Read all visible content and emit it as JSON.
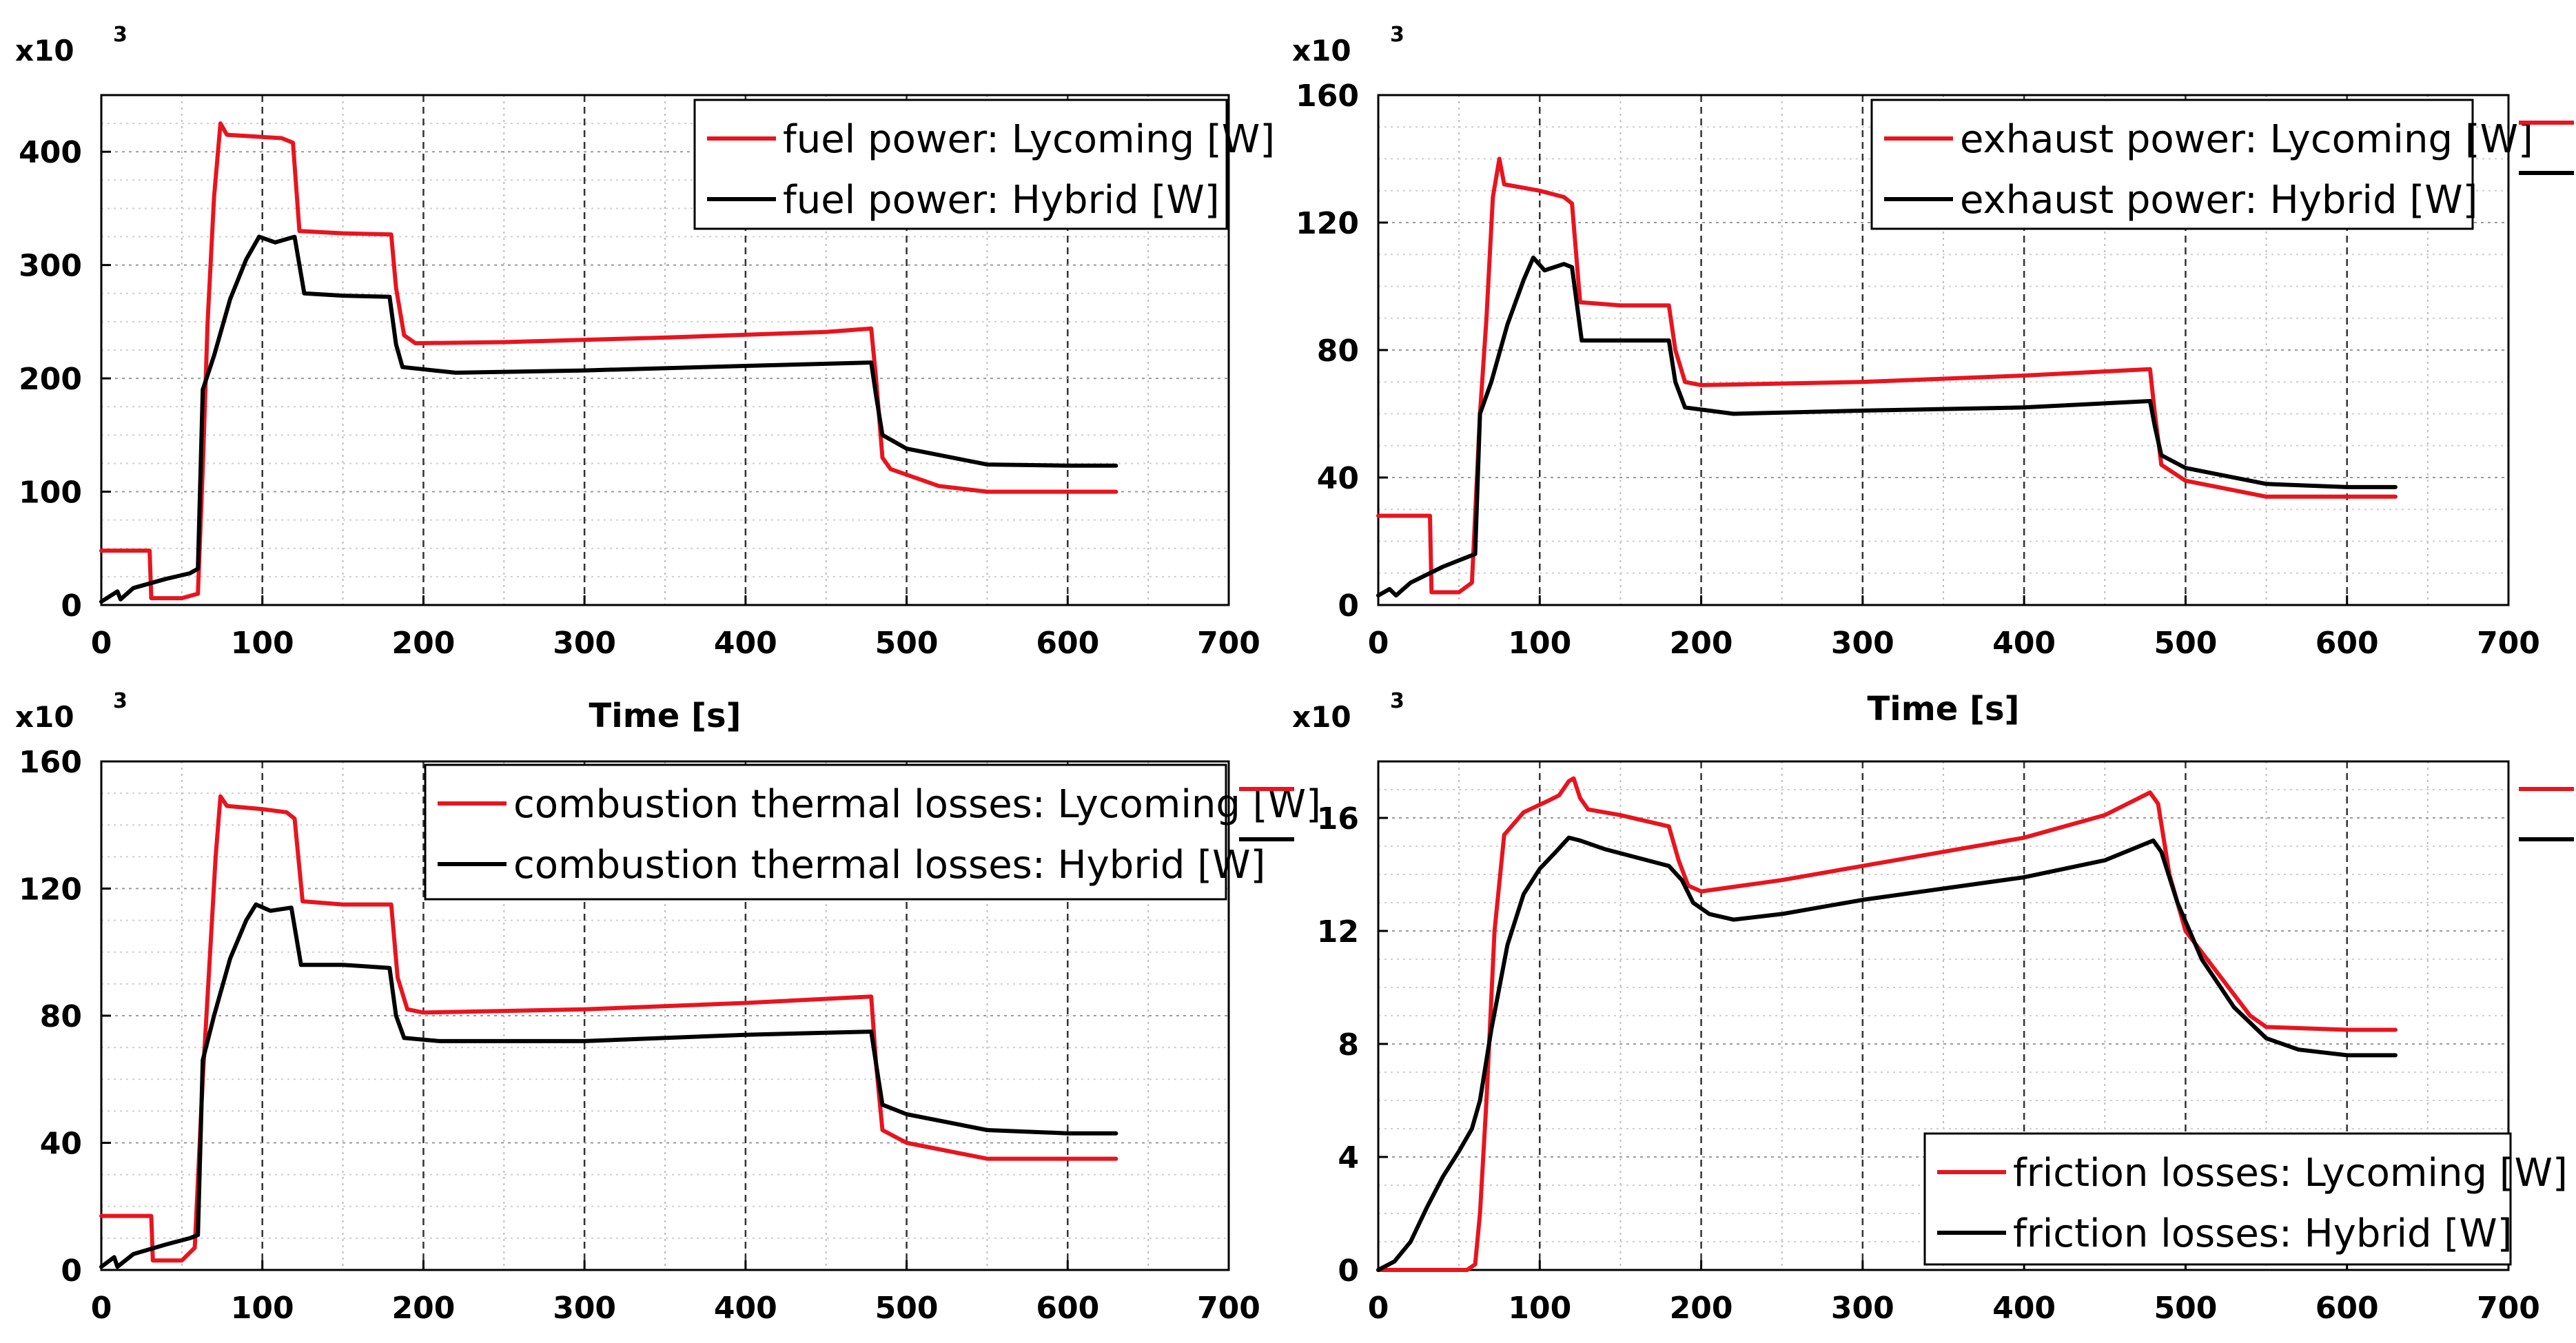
{
  "chart_data": [
    {
      "type": "line",
      "multiplier": "x10",
      "multiplier_exp": "3",
      "xlabel": "Time [s]",
      "xlim": [
        0,
        700
      ],
      "ylim": [
        0,
        450
      ],
      "xticks": [
        0,
        100,
        200,
        300,
        400,
        500,
        600,
        700
      ],
      "xtick_labels": [
        "0",
        "100",
        "200",
        "300",
        "400",
        "500",
        "600",
        "700"
      ],
      "yticks": [
        0,
        100,
        200,
        300,
        400
      ],
      "ytick_labels": [
        "0",
        "100",
        "200",
        "300",
        "400"
      ],
      "legend_position": "top-right",
      "series": [
        {
          "name": "fuel power: Lycoming [W]",
          "color": "#e8141e",
          "points": [
            [
              0,
              48
            ],
            [
              30,
              48
            ],
            [
              31,
              6
            ],
            [
              50,
              6
            ],
            [
              60,
              10
            ],
            [
              63,
              120
            ],
            [
              66,
              250
            ],
            [
              70,
              360
            ],
            [
              74,
              425
            ],
            [
              78,
              415
            ],
            [
              100,
              413
            ],
            [
              112,
              412
            ],
            [
              119,
              408
            ],
            [
              123,
              330
            ],
            [
              150,
              328
            ],
            [
              180,
              327
            ],
            [
              183,
              280
            ],
            [
              188,
              238
            ],
            [
              195,
              231
            ],
            [
              250,
              232
            ],
            [
              350,
              236
            ],
            [
              450,
              241
            ],
            [
              478,
              244
            ],
            [
              481,
              200
            ],
            [
              485,
              130
            ],
            [
              490,
              120
            ],
            [
              520,
              105
            ],
            [
              550,
              100
            ],
            [
              600,
              100
            ],
            [
              630,
              100
            ]
          ]
        },
        {
          "name": "fuel power: Hybrid [W]",
          "color": "#000000",
          "points": [
            [
              0,
              3
            ],
            [
              10,
              12
            ],
            [
              12,
              5
            ],
            [
              20,
              15
            ],
            [
              40,
              23
            ],
            [
              55,
              28
            ],
            [
              60,
              32
            ],
            [
              63,
              190
            ],
            [
              70,
              220
            ],
            [
              80,
              270
            ],
            [
              90,
              305
            ],
            [
              98,
              325
            ],
            [
              108,
              320
            ],
            [
              120,
              325
            ],
            [
              126,
              275
            ],
            [
              150,
              273
            ],
            [
              179,
              272
            ],
            [
              183,
              230
            ],
            [
              187,
              210
            ],
            [
              220,
              205
            ],
            [
              300,
              207
            ],
            [
              400,
              211
            ],
            [
              478,
              214
            ],
            [
              481,
              185
            ],
            [
              485,
              150
            ],
            [
              500,
              138
            ],
            [
              550,
              124
            ],
            [
              600,
              123
            ],
            [
              630,
              123
            ]
          ]
        }
      ]
    },
    {
      "type": "line",
      "multiplier": "x10",
      "multiplier_exp": "3",
      "xlabel": "Time [s]",
      "xlim": [
        0,
        700
      ],
      "ylim": [
        0,
        160
      ],
      "xticks": [
        0,
        100,
        200,
        300,
        400,
        500,
        600,
        700
      ],
      "xtick_labels": [
        "0",
        "100",
        "200",
        "300",
        "400",
        "500",
        "600",
        "700"
      ],
      "yticks": [
        0,
        40,
        80,
        120,
        160
      ],
      "ytick_labels": [
        "0",
        "40",
        "80",
        "120",
        "160"
      ],
      "legend_position": "top-right",
      "series": [
        {
          "name": "exhaust power: Lycoming [W]",
          "color": "#e8141e",
          "points": [
            [
              0,
              28
            ],
            [
              32,
              28
            ],
            [
              33,
              4
            ],
            [
              50,
              4
            ],
            [
              58,
              7
            ],
            [
              63,
              60
            ],
            [
              67,
              90
            ],
            [
              71,
              128
            ],
            [
              75,
              140
            ],
            [
              78,
              132
            ],
            [
              100,
              130
            ],
            [
              115,
              128
            ],
            [
              120,
              126
            ],
            [
              125,
              95
            ],
            [
              150,
              94
            ],
            [
              180,
              94
            ],
            [
              184,
              80
            ],
            [
              190,
              70
            ],
            [
              200,
              69
            ],
            [
              300,
              70
            ],
            [
              400,
              72
            ],
            [
              478,
              74
            ],
            [
              481,
              60
            ],
            [
              485,
              44
            ],
            [
              500,
              39
            ],
            [
              550,
              34
            ],
            [
              600,
              34
            ],
            [
              630,
              34
            ]
          ]
        },
        {
          "name": "exhaust power: Hybrid [W]",
          "color": "#000000",
          "points": [
            [
              0,
              3
            ],
            [
              7,
              5
            ],
            [
              11,
              3
            ],
            [
              20,
              7
            ],
            [
              40,
              12
            ],
            [
              55,
              15
            ],
            [
              60,
              16
            ],
            [
              63,
              60
            ],
            [
              70,
              70
            ],
            [
              80,
              88
            ],
            [
              90,
              102
            ],
            [
              96,
              109
            ],
            [
              103,
              105
            ],
            [
              115,
              107
            ],
            [
              120,
              106
            ],
            [
              126,
              83
            ],
            [
              150,
              83
            ],
            [
              180,
              83
            ],
            [
              184,
              70
            ],
            [
              190,
              62
            ],
            [
              220,
              60
            ],
            [
              300,
              61
            ],
            [
              400,
              62
            ],
            [
              478,
              64
            ],
            [
              481,
              56
            ],
            [
              485,
              47
            ],
            [
              500,
              43
            ],
            [
              550,
              38
            ],
            [
              600,
              37
            ],
            [
              630,
              37
            ]
          ]
        }
      ]
    },
    {
      "type": "line",
      "multiplier": "x10",
      "multiplier_exp": "3",
      "xlabel": "",
      "xlim": [
        0,
        700
      ],
      "ylim": [
        0,
        160
      ],
      "xticks": [
        0,
        100,
        200,
        300,
        400,
        500,
        600,
        700
      ],
      "xtick_labels": [
        "0",
        "100",
        "200",
        "300",
        "400",
        "500",
        "600",
        "700"
      ],
      "yticks": [
        0,
        40,
        80,
        120,
        160
      ],
      "ytick_labels": [
        "0",
        "40",
        "80",
        "120",
        "160"
      ],
      "legend_position": "top-right",
      "series": [
        {
          "name": "combustion thermal losses: Lycoming [W]",
          "color": "#e8141e",
          "points": [
            [
              0,
              17
            ],
            [
              31,
              17
            ],
            [
              32,
              3
            ],
            [
              50,
              3
            ],
            [
              58,
              7
            ],
            [
              63,
              60
            ],
            [
              67,
              95
            ],
            [
              71,
              130
            ],
            [
              74,
              149
            ],
            [
              78,
              146
            ],
            [
              100,
              145
            ],
            [
              115,
              144
            ],
            [
              120,
              142
            ],
            [
              125,
              116
            ],
            [
              150,
              115
            ],
            [
              180,
              115
            ],
            [
              184,
              92
            ],
            [
              190,
              82
            ],
            [
              200,
              81
            ],
            [
              300,
              82
            ],
            [
              400,
              84
            ],
            [
              478,
              86
            ],
            [
              481,
              65
            ],
            [
              485,
              44
            ],
            [
              500,
              40
            ],
            [
              550,
              35
            ],
            [
              600,
              35
            ],
            [
              630,
              35
            ]
          ]
        },
        {
          "name": "combustion thermal losses: Hybrid [W]",
          "color": "#000000",
          "points": [
            [
              0,
              1
            ],
            [
              8,
              4
            ],
            [
              10,
              1
            ],
            [
              20,
              5
            ],
            [
              40,
              8
            ],
            [
              55,
              10
            ],
            [
              60,
              11
            ],
            [
              63,
              66
            ],
            [
              70,
              80
            ],
            [
              80,
              98
            ],
            [
              90,
              110
            ],
            [
              96,
              115
            ],
            [
              105,
              113
            ],
            [
              118,
              114
            ],
            [
              124,
              96
            ],
            [
              150,
              96
            ],
            [
              179,
              95
            ],
            [
              183,
              80
            ],
            [
              188,
              73
            ],
            [
              210,
              72
            ],
            [
              300,
              72
            ],
            [
              400,
              74
            ],
            [
              478,
              75
            ],
            [
              481,
              65
            ],
            [
              485,
              52
            ],
            [
              500,
              49
            ],
            [
              550,
              44
            ],
            [
              600,
              43
            ],
            [
              630,
              43
            ]
          ]
        }
      ]
    },
    {
      "type": "line",
      "multiplier": "x10",
      "multiplier_exp": "3",
      "xlabel": "",
      "xlim": [
        0,
        700
      ],
      "ylim": [
        0,
        18
      ],
      "xticks": [
        0,
        100,
        200,
        300,
        400,
        500,
        600,
        700
      ],
      "xtick_labels": [
        "0",
        "100",
        "200",
        "300",
        "400",
        "500",
        "600",
        "700"
      ],
      "yticks": [
        0,
        4,
        8,
        12,
        16
      ],
      "ytick_labels": [
        "0",
        "4",
        "8",
        "12",
        "16"
      ],
      "legend_position": "bottom-right",
      "series": [
        {
          "name": "friction losses: Lycoming [W]",
          "color": "#e8141e",
          "points": [
            [
              0,
              0
            ],
            [
              55,
              0
            ],
            [
              60,
              0.2
            ],
            [
              63,
              2
            ],
            [
              67,
              6
            ],
            [
              72,
              12
            ],
            [
              78,
              15.4
            ],
            [
              90,
              16.2
            ],
            [
              105,
              16.6
            ],
            [
              112,
              16.8
            ],
            [
              118,
              17.3
            ],
            [
              121,
              17.4
            ],
            [
              125,
              16.7
            ],
            [
              130,
              16.3
            ],
            [
              150,
              16.1
            ],
            [
              180,
              15.7
            ],
            [
              186,
              14.5
            ],
            [
              192,
              13.6
            ],
            [
              200,
              13.4
            ],
            [
              250,
              13.8
            ],
            [
              300,
              14.3
            ],
            [
              350,
              14.8
            ],
            [
              400,
              15.3
            ],
            [
              450,
              16.1
            ],
            [
              478,
              16.9
            ],
            [
              483,
              16.5
            ],
            [
              490,
              14
            ],
            [
              500,
              12
            ],
            [
              520,
              10.5
            ],
            [
              540,
              9
            ],
            [
              550,
              8.6
            ],
            [
              600,
              8.5
            ],
            [
              630,
              8.5
            ]
          ]
        },
        {
          "name": "friction losses: Hybrid [W]",
          "color": "#000000",
          "points": [
            [
              0,
              0
            ],
            [
              10,
              0.3
            ],
            [
              20,
              1
            ],
            [
              30,
              2.2
            ],
            [
              40,
              3.3
            ],
            [
              50,
              4.2
            ],
            [
              58,
              5
            ],
            [
              63,
              6
            ],
            [
              70,
              8.5
            ],
            [
              80,
              11.5
            ],
            [
              90,
              13.3
            ],
            [
              100,
              14.2
            ],
            [
              110,
              14.8
            ],
            [
              118,
              15.3
            ],
            [
              125,
              15.2
            ],
            [
              140,
              14.9
            ],
            [
              180,
              14.3
            ],
            [
              188,
              13.8
            ],
            [
              195,
              13
            ],
            [
              205,
              12.6
            ],
            [
              220,
              12.4
            ],
            [
              250,
              12.6
            ],
            [
              300,
              13.1
            ],
            [
              350,
              13.5
            ],
            [
              400,
              13.9
            ],
            [
              450,
              14.5
            ],
            [
              480,
              15.2
            ],
            [
              485,
              14.8
            ],
            [
              495,
              13
            ],
            [
              510,
              11
            ],
            [
              530,
              9.3
            ],
            [
              550,
              8.2
            ],
            [
              570,
              7.8
            ],
            [
              600,
              7.6
            ],
            [
              630,
              7.6
            ]
          ]
        }
      ]
    }
  ]
}
